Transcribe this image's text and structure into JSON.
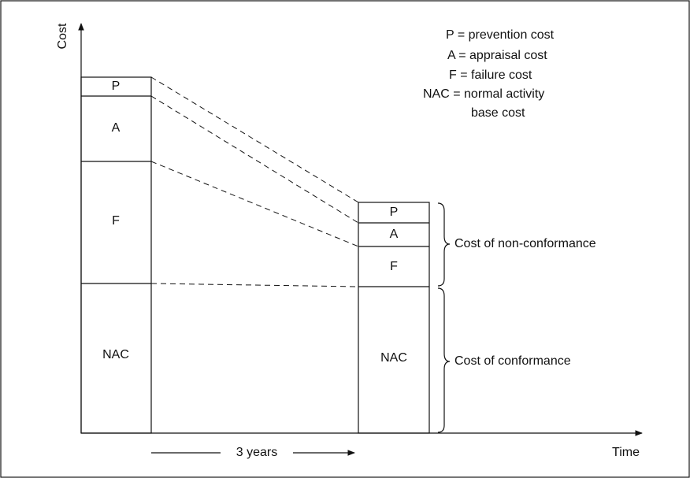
{
  "axes": {
    "y_label": "Cost",
    "x_label": "Time"
  },
  "left_bar": {
    "segments": [
      "P",
      "A",
      "F",
      "NAC"
    ]
  },
  "right_bar": {
    "segments": [
      "P",
      "A",
      "F",
      "NAC"
    ]
  },
  "legend": [
    "P = prevention cost",
    "A = appraisal cost",
    "F = failure cost",
    "NAC = normal activity",
    "base cost"
  ],
  "braces": [
    "Cost of non-conformance",
    "Cost of conformance"
  ],
  "duration": "3 years"
}
